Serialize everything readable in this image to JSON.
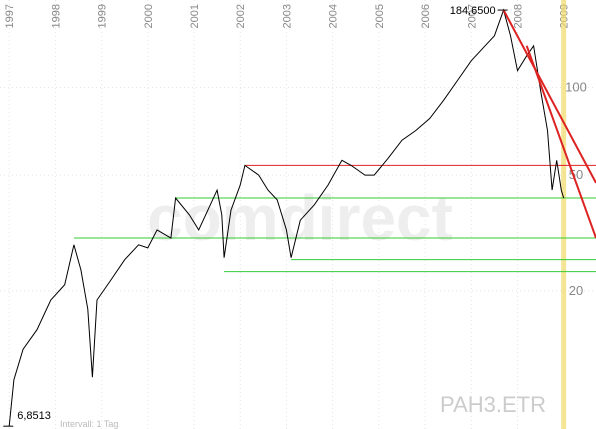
{
  "chart_data": {
    "type": "line",
    "log_scale": true,
    "grid": true,
    "x": [
      1997.0,
      1997.1,
      1997.3,
      1997.6,
      1997.9,
      1998.2,
      1998.4,
      1998.55,
      1998.7,
      1998.8,
      1998.9,
      1999.2,
      1999.5,
      1999.8,
      2000.0,
      2000.2,
      2000.5,
      2000.6,
      2000.9,
      2001.1,
      2001.3,
      2001.5,
      2001.6,
      2001.65,
      2001.8,
      2002.0,
      2002.1,
      2002.4,
      2002.6,
      2002.8,
      2003.0,
      2003.1,
      2003.3,
      2003.6,
      2003.9,
      2004.2,
      2004.4,
      2004.7,
      2004.9,
      2005.2,
      2005.5,
      2005.8,
      2006.1,
      2006.4,
      2006.7,
      2007.0,
      2007.3,
      2007.5,
      2007.7,
      2007.85,
      2008.0,
      2008.2,
      2008.35,
      2008.5,
      2008.65,
      2008.75,
      2008.85,
      2008.95,
      2009.0
    ],
    "series": [
      {
        "name": "PAH3.ETR",
        "color": "#000000",
        "values": [
          6.8513,
          9.9,
          12.6,
          14.7,
          18.6,
          21,
          28.8,
          23.6,
          17.3,
          10.1,
          18.6,
          21.8,
          25.6,
          28.8,
          28.1,
          32.4,
          30.4,
          41.7,
          36.5,
          32.4,
          37.9,
          44.4,
          36.5,
          26,
          37.9,
          46.2,
          54,
          50,
          44.4,
          41.1,
          32.4,
          26,
          35,
          39.5,
          46.2,
          56.2,
          54,
          50,
          50,
          57.1,
          65.9,
          71.2,
          78.3,
          90.3,
          105.7,
          123.7,
          139.2,
          150.7,
          184.65,
          150.7,
          114.3,
          128.6,
          139.2,
          97.7,
          71.2,
          44.4,
          56.2,
          44.4,
          41.7
        ]
      }
    ],
    "xlim": [
      1996.8,
      2009.7
    ],
    "ylim": [
      6.7,
      200
    ],
    "xticks": [
      1997,
      1998,
      1999,
      2000,
      2001,
      2002,
      2003,
      2004,
      2005,
      2006,
      2007,
      2008,
      2009
    ],
    "yticks": [
      20,
      50,
      100
    ],
    "annotations": [
      {
        "label": "184,6500",
        "value": 184.65,
        "x": 2007.7
      },
      {
        "label": "6,8513",
        "value": 6.8513,
        "x": 1997.0
      }
    ],
    "hlines": [
      {
        "value": 54,
        "from": 2002.1,
        "color": "#dd2222"
      },
      {
        "value": 41.7,
        "from": 2000.6,
        "color": "#33cc33"
      },
      {
        "value": 30.4,
        "from": 1998.4,
        "color": "#33cc33"
      },
      {
        "value": 25.6,
        "from": 2003.1,
        "color": "#33cc33"
      },
      {
        "value": 23.3,
        "from": 2001.65,
        "color": "#33cc33"
      }
    ],
    "trendlines": [
      {
        "points": [
          2007.7,
          184.65,
          2009.7,
          47
        ],
        "color": "#dd2222"
      },
      {
        "points": [
          2008.2,
          139.2,
          2009.7,
          30.4
        ],
        "color": "#dd2222"
      }
    ],
    "marker_line": {
      "value": 2009.0,
      "color": "#f2dc6a"
    },
    "watermark": "comdirect",
    "footer": "Intervall: 1 Tag"
  }
}
